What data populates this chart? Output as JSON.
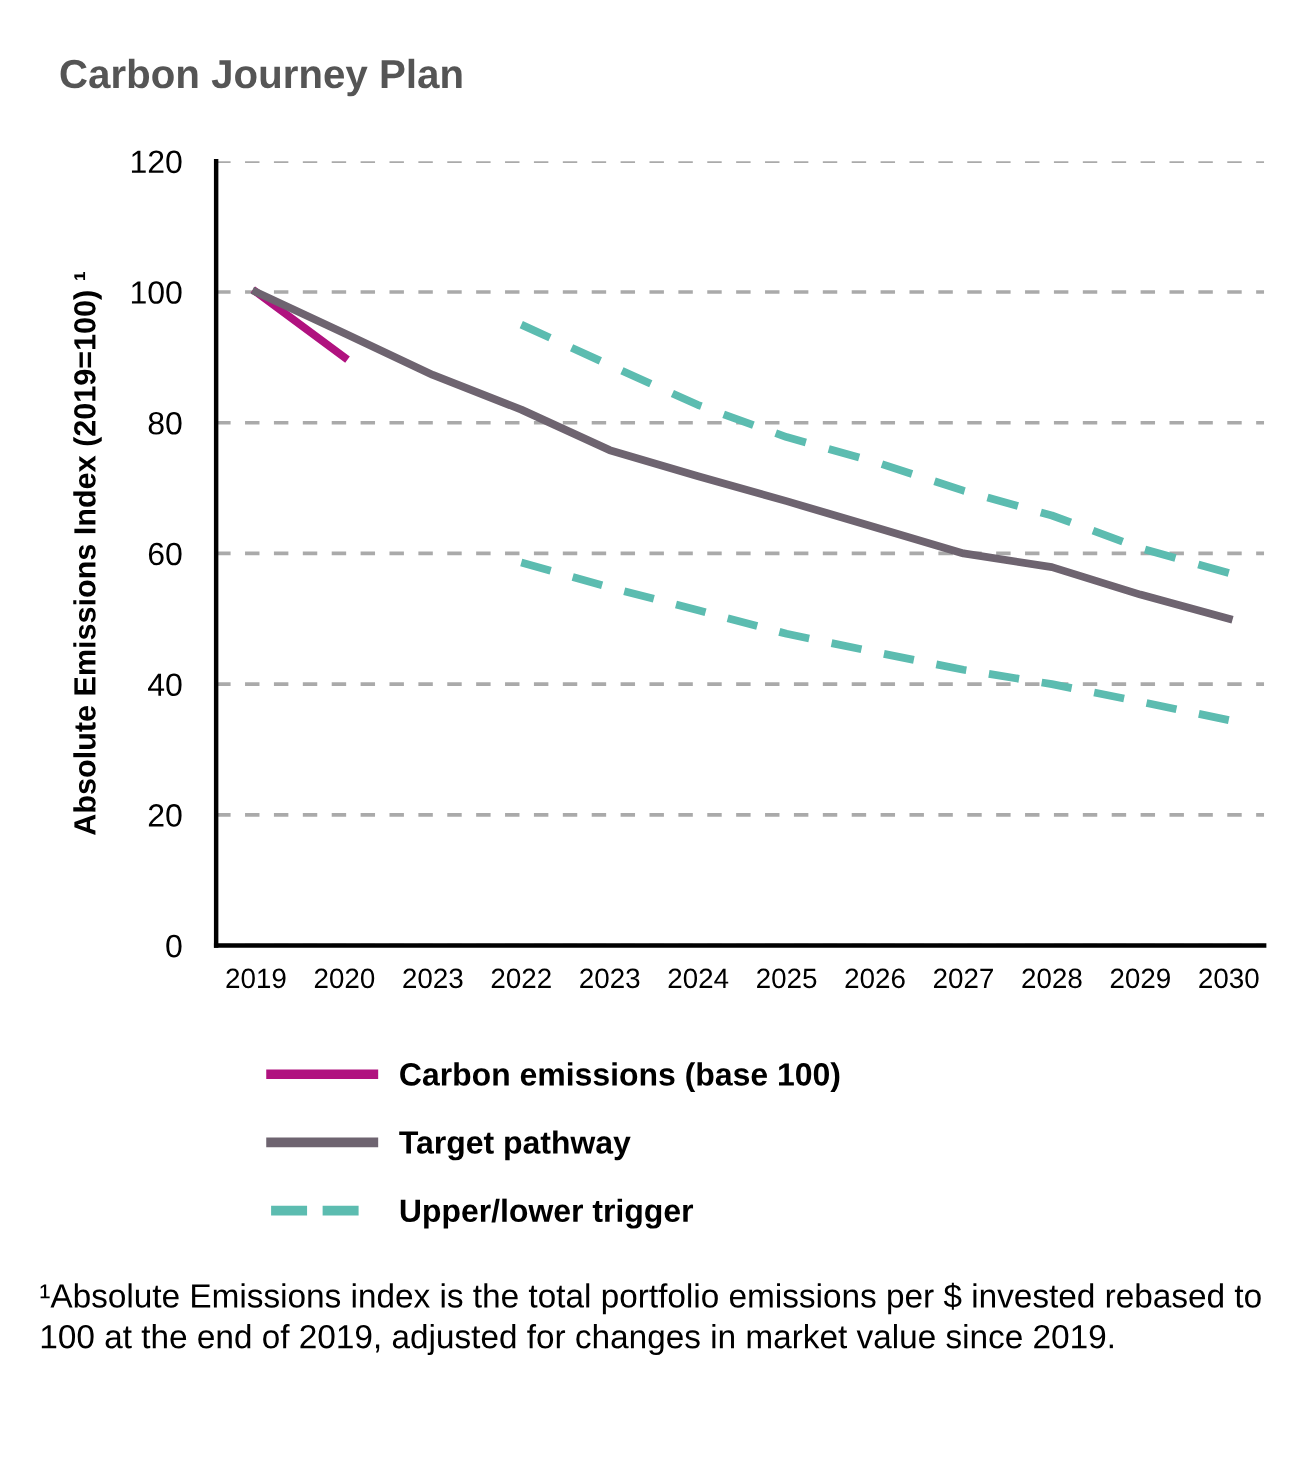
{
  "chart_data": {
    "type": "line",
    "title": "Carbon Journey Plan",
    "ylabel": "Absolute Emissions Index (2019=100) ¹",
    "categories": [
      "2019",
      "2020",
      "2023",
      "2022",
      "2023",
      "2024",
      "2025",
      "2026",
      "2027",
      "2028",
      "2029",
      "2030"
    ],
    "series": [
      {
        "name": "Carbon emissions (base 100)",
        "color": "#b0127f",
        "line_style": "solid",
        "values": [
          100,
          90,
          null,
          null,
          null,
          null,
          null,
          null,
          null,
          null,
          null,
          null
        ]
      },
      {
        "name": "Target pathway",
        "color": "#6e6470",
        "line_style": "solid",
        "values": [
          100,
          93.7,
          87.3,
          82,
          75.8,
          71.8,
          68,
          64,
          60,
          57.9,
          53.7,
          50
        ]
      },
      {
        "name": "Upper/lower trigger",
        "color": "#5cbcb0",
        "line_style": "dashed",
        "values": [
          null,
          null,
          null,
          95,
          88.8,
          82.7,
          77.8,
          74,
          69.6,
          65.8,
          60.8,
          57
        ]
      },
      {
        "color": "#5cbcb0",
        "line_style": "dashed",
        "values": [
          null,
          null,
          null,
          58.6,
          54.8,
          51.3,
          47.7,
          44.9,
          42.2,
          40,
          37.3,
          34.5
        ]
      }
    ],
    "ylim": [
      0,
      120
    ],
    "yticks": [
      0,
      20,
      40,
      60,
      80,
      100,
      120
    ],
    "grid": "y",
    "legend": "bottom",
    "marker": "none",
    "annotations": [
      "¹Absolute Emissions index is the total portfolio emissions per $ invested rebased to 100 at the end of 2019, adjusted for changes in market value since 2019."
    ]
  }
}
